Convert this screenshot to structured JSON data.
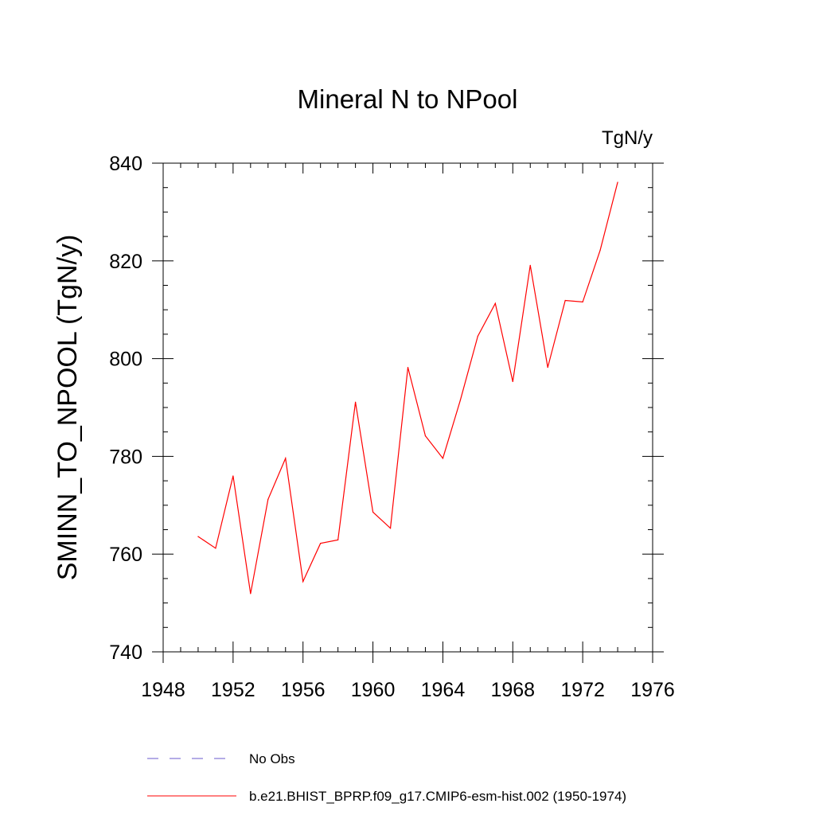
{
  "chart_data": {
    "type": "line",
    "title": "Mineral N to NPool",
    "units_label": "TgN/y",
    "ylabel": "SMINN_TO_NPOOL  (TgN/y)",
    "xlabel": "",
    "xlim": [
      1948,
      1976
    ],
    "ylim": [
      740,
      840
    ],
    "x_ticks": [
      1948,
      1952,
      1956,
      1960,
      1964,
      1968,
      1972,
      1976
    ],
    "y_ticks": [
      740,
      760,
      780,
      800,
      820,
      840
    ],
    "x_tick_labels": [
      "1948",
      "1952",
      "1956",
      "1960",
      "1964",
      "1968",
      "1972",
      "1976"
    ],
    "y_tick_labels": [
      "740",
      "760",
      "780",
      "800",
      "820",
      "840"
    ],
    "legend_placement": "bottom",
    "series": [
      {
        "name": "b.e21.BHIST_BPRP.f09_g17.CMIP6-esm-hist.002 (1950-1974)",
        "color": "#ff0000",
        "style": "solid",
        "x": [
          1950,
          1951,
          1952,
          1953,
          1954,
          1955,
          1956,
          1957,
          1958,
          1959,
          1960,
          1961,
          1962,
          1963,
          1964,
          1965,
          1966,
          1967,
          1968,
          1969,
          1970,
          1971,
          1972,
          1973,
          1974
        ],
        "y": [
          763.6,
          761.2,
          776.0,
          751.9,
          771.2,
          779.6,
          754.4,
          762.2,
          762.9,
          791.1,
          768.6,
          765.3,
          798.2,
          784.2,
          779.6,
          791.5,
          804.6,
          811.3,
          795.3,
          819.1,
          798.2,
          811.9,
          811.6,
          822.2,
          836.1
        ]
      }
    ],
    "legend": [
      {
        "label": "No Obs",
        "color": "#6a5acd",
        "style": "dashed"
      },
      {
        "label": "b.e21.BHIST_BPRP.f09_g17.CMIP6-esm-hist.002 (1950-1974)",
        "color": "#ff0000",
        "style": "solid"
      }
    ]
  }
}
